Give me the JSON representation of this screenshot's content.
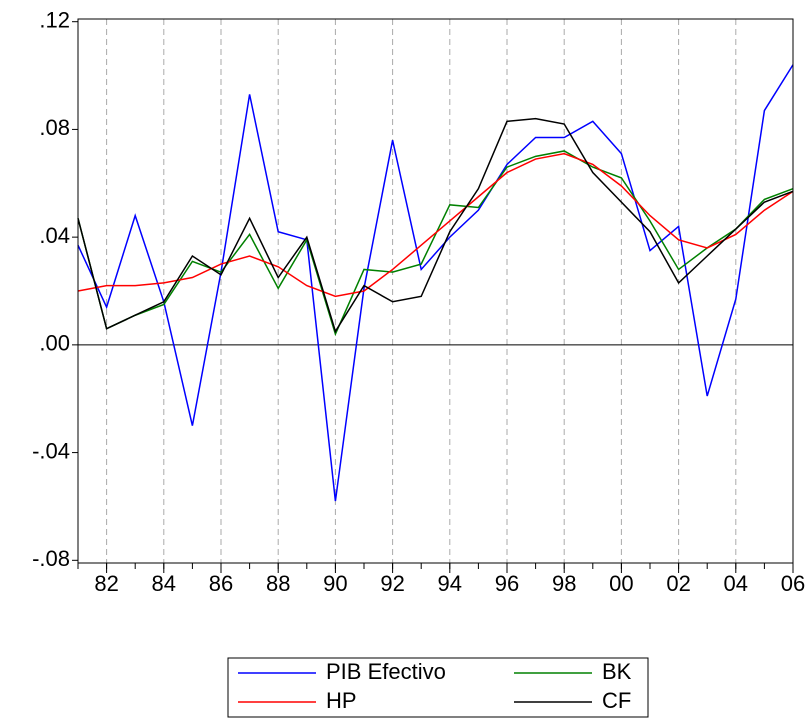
{
  "chart_data": {
    "type": "line",
    "x": [
      1981,
      1982,
      1983,
      1984,
      1985,
      1986,
      1987,
      1988,
      1989,
      1990,
      1991,
      1992,
      1993,
      1994,
      1995,
      1996,
      1997,
      1998,
      1999,
      2000,
      2001,
      2002,
      2003,
      2004,
      2005,
      2006
    ],
    "series": [
      {
        "name": "PIB Efectivo",
        "color": "#0000ff",
        "values": [
          0.037,
          0.014,
          0.048,
          0.016,
          -0.03,
          0.027,
          0.093,
          0.042,
          0.039,
          -0.058,
          0.021,
          0.076,
          0.028,
          0.04,
          0.05,
          0.067,
          0.077,
          0.077,
          0.083,
          0.071,
          0.035,
          0.044,
          -0.019,
          0.017,
          0.087,
          0.104
        ]
      },
      {
        "name": "BK",
        "color": "#008000",
        "values": [
          0.047,
          0.006,
          0.011,
          0.015,
          0.031,
          0.027,
          0.041,
          0.021,
          0.039,
          0.004,
          0.028,
          0.027,
          0.03,
          0.052,
          0.051,
          0.066,
          0.07,
          0.072,
          0.066,
          0.062,
          0.046,
          0.028,
          0.036,
          0.043,
          0.054,
          0.058
        ]
      },
      {
        "name": "HP",
        "color": "#ff0000",
        "values": [
          0.02,
          0.022,
          0.022,
          0.023,
          0.025,
          0.03,
          0.033,
          0.029,
          0.022,
          0.018,
          0.02,
          0.028,
          0.037,
          0.046,
          0.055,
          0.064,
          0.069,
          0.071,
          0.067,
          0.059,
          0.048,
          0.039,
          0.036,
          0.041,
          0.05,
          0.057
        ]
      },
      {
        "name": "CF",
        "color": "#000000",
        "values": [
          0.047,
          0.006,
          0.011,
          0.016,
          0.033,
          0.026,
          0.047,
          0.025,
          0.04,
          0.005,
          0.022,
          0.016,
          0.018,
          0.042,
          0.058,
          0.083,
          0.084,
          0.082,
          0.064,
          0.053,
          0.042,
          0.023,
          0.033,
          0.043,
          0.053,
          0.057
        ]
      }
    ],
    "xlim": [
      1981,
      2006
    ],
    "xticks": [
      {
        "value": 1982,
        "label": "82"
      },
      {
        "value": 1984,
        "label": "84"
      },
      {
        "value": 1986,
        "label": "86"
      },
      {
        "value": 1988,
        "label": "88"
      },
      {
        "value": 1990,
        "label": "90"
      },
      {
        "value": 1992,
        "label": "92"
      },
      {
        "value": 1994,
        "label": "94"
      },
      {
        "value": 1996,
        "label": "96"
      },
      {
        "value": 1998,
        "label": "98"
      },
      {
        "value": 2000,
        "label": "00"
      },
      {
        "value": 2002,
        "label": "02"
      },
      {
        "value": 2004,
        "label": "04"
      },
      {
        "value": 2006,
        "label": "06"
      }
    ],
    "ylim": [
      -0.081,
      0.121
    ],
    "yticks": [
      {
        "value": 0.12,
        "label": ".12"
      },
      {
        "value": 0.08,
        "label": ".08"
      },
      {
        "value": 0.04,
        "label": ".04"
      },
      {
        "value": 0,
        "label": ".00"
      },
      {
        "value": -0.04,
        "label": "-.04"
      },
      {
        "value": -0.08,
        "label": "-.08"
      }
    ],
    "grid": true,
    "zero_line": true,
    "legend": "bottom"
  }
}
